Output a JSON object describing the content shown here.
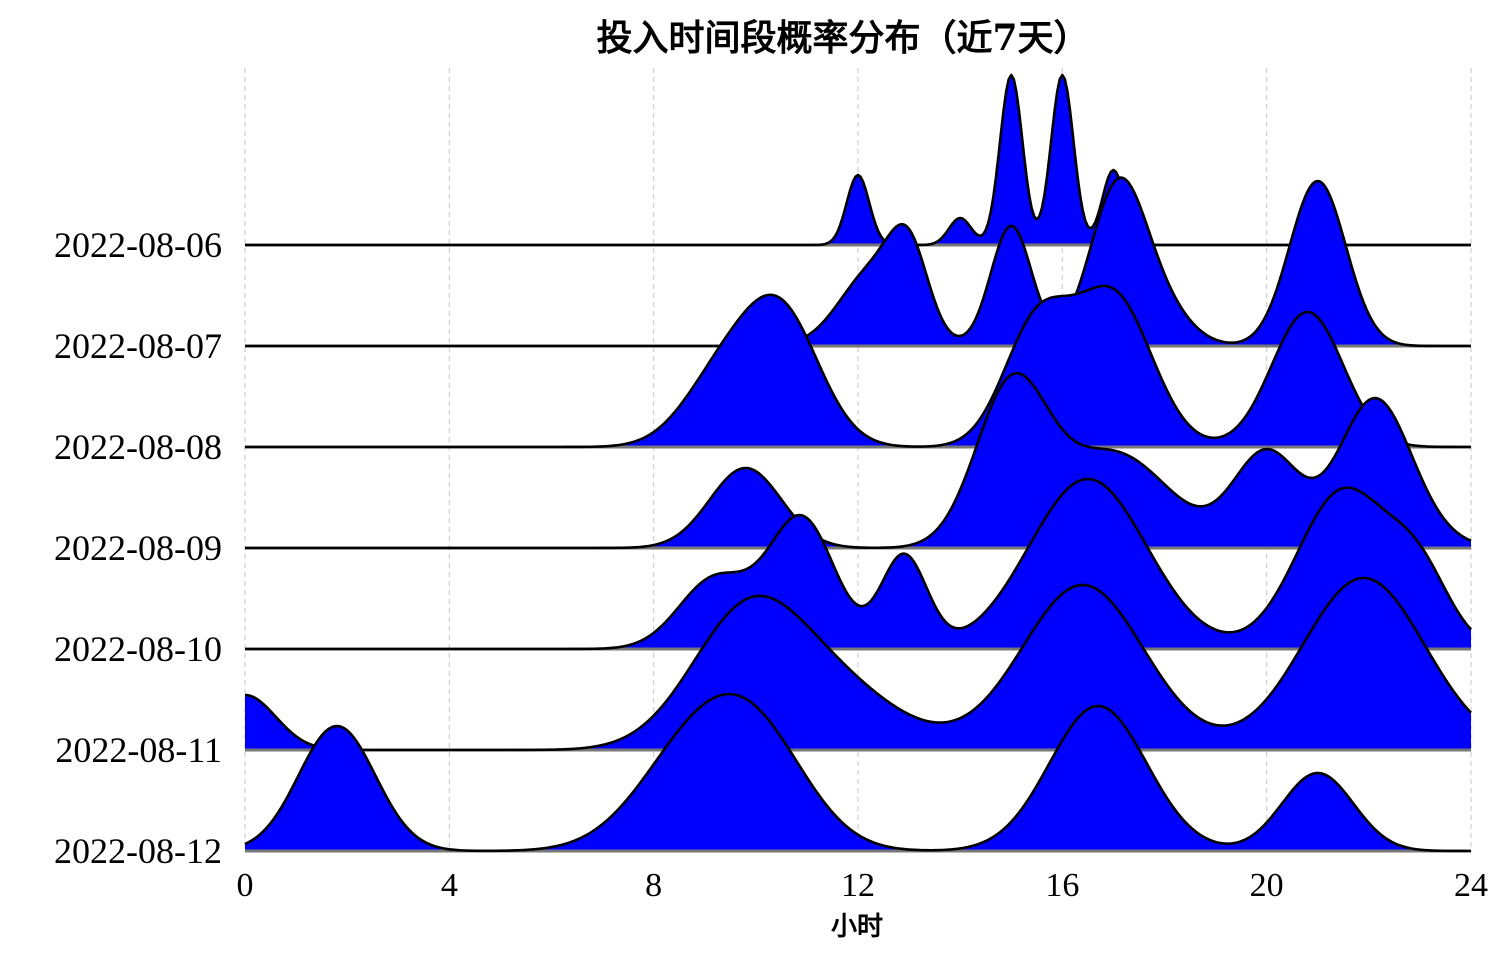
{
  "chart_data": {
    "type": "area",
    "subtype": "ridgeline",
    "title": "投入时间段概率分布（近7天）",
    "xlabel": "小时",
    "ylabel": "",
    "xlim": [
      0,
      24
    ],
    "xticks": [
      "0",
      "4",
      "8",
      "12",
      "16",
      "20",
      "24"
    ],
    "grid": "vertical dashed",
    "fill_color": "#0000ff",
    "line_color": "#000000",
    "series": [
      {
        "name": "2022-08-06",
        "peaks": [
          [
            12,
            0.7,
            0.22
          ],
          [
            14,
            0.27,
            0.22
          ],
          [
            15,
            1.7,
            0.22
          ],
          [
            16,
            1.7,
            0.22
          ],
          [
            17,
            0.75,
            0.22
          ]
        ]
      },
      {
        "name": "2022-08-07",
        "peaks": [
          [
            12.3,
            0.75,
            0.65
          ],
          [
            13,
            0.75,
            0.38
          ],
          [
            15,
            1.2,
            0.4
          ],
          [
            17.1,
            1.6,
            0.55
          ],
          [
            18,
            0.3,
            0.55
          ],
          [
            21,
            1.65,
            0.55
          ]
        ]
      },
      {
        "name": "2022-08-08",
        "peaks": [
          [
            9.3,
            0.65,
            0.75
          ],
          [
            10.5,
            1.3,
            0.75
          ],
          [
            15.5,
            1.2,
            0.65
          ],
          [
            17,
            1.5,
            0.75
          ],
          [
            20.8,
            1.35,
            0.7
          ]
        ]
      },
      {
        "name": "2022-08-09",
        "peaks": [
          [
            9.8,
            0.8,
            0.7
          ],
          [
            15,
            1.55,
            0.7
          ],
          [
            17,
            0.95,
            1.1
          ],
          [
            20,
            0.95,
            0.65
          ],
          [
            22.1,
            1.45,
            0.7
          ],
          [
            23,
            0.1,
            0.7
          ]
        ]
      },
      {
        "name": "2022-08-10",
        "peaks": [
          [
            9.2,
            0.7,
            0.7
          ],
          [
            10.9,
            1.3,
            0.65
          ],
          [
            12.9,
            0.93,
            0.45
          ],
          [
            16.5,
            1.7,
            1.15
          ],
          [
            21.5,
            1.58,
            0.9
          ],
          [
            23,
            0.65,
            0.6
          ]
        ]
      },
      {
        "name": "2022-08-11",
        "peaks": [
          [
            0,
            0.55,
            0.6
          ],
          [
            9.8,
            1.25,
            1.1
          ],
          [
            11.5,
            0.6,
            1.3
          ],
          [
            16.4,
            1.65,
            1.2
          ],
          [
            21.9,
            1.72,
            1.2
          ]
        ]
      },
      {
        "name": "2022-08-12",
        "peaks": [
          [
            1.8,
            1.25,
            0.75
          ],
          [
            8.8,
            1.0,
            1.1
          ],
          [
            10.1,
            0.9,
            1.0
          ],
          [
            16.7,
            1.45,
            0.95
          ],
          [
            21,
            0.78,
            0.7
          ]
        ]
      }
    ]
  }
}
